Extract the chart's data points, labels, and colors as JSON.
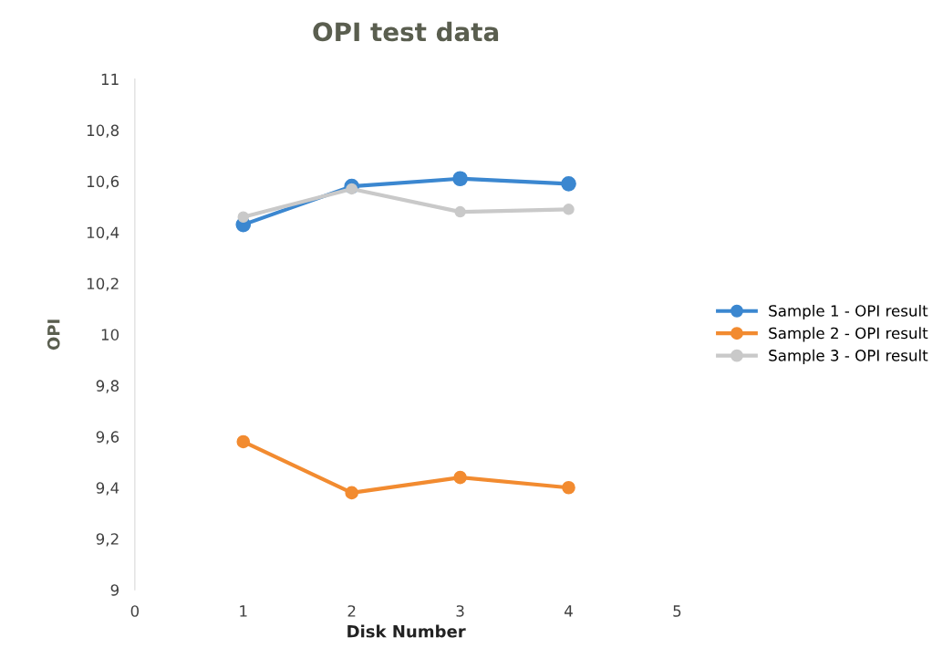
{
  "chart_data": {
    "type": "line",
    "title": "OPI test data",
    "xlabel": "Disk Number",
    "ylabel": "OPI",
    "x": [
      1,
      2,
      3,
      4
    ],
    "series": [
      {
        "name": "Sample 1 - OPI result",
        "color": "#3b87d0",
        "values": [
          10.43,
          10.58,
          10.61,
          10.59
        ]
      },
      {
        "name": "Sample 2 - OPI result",
        "color": "#f28b30",
        "values": [
          9.58,
          9.38,
          9.44,
          9.4
        ]
      },
      {
        "name": "Sample 3 - OPI result",
        "color": "#c9c9c9",
        "values": [
          10.46,
          10.57,
          10.48,
          10.49
        ]
      }
    ],
    "xlim": [
      0,
      5
    ],
    "xticks": [
      0,
      1,
      2,
      3,
      4,
      5
    ],
    "ylim": [
      9,
      11
    ],
    "yticks": [
      {
        "value": 9,
        "label": "9"
      },
      {
        "value": 9.2,
        "label": "9,2"
      },
      {
        "value": 9.4,
        "label": "9,4"
      },
      {
        "value": 9.6,
        "label": "9,6"
      },
      {
        "value": 9.8,
        "label": "9,8"
      },
      {
        "value": 10,
        "label": "10"
      },
      {
        "value": 10.2,
        "label": "10,2"
      },
      {
        "value": 10.4,
        "label": "10,4"
      },
      {
        "value": 10.6,
        "label": "10,6"
      },
      {
        "value": 10.8,
        "label": "10,8"
      },
      {
        "value": 11,
        "label": "11"
      }
    ],
    "legend": "right",
    "marker": "circle",
    "line_style": "solid",
    "grid": false
  }
}
